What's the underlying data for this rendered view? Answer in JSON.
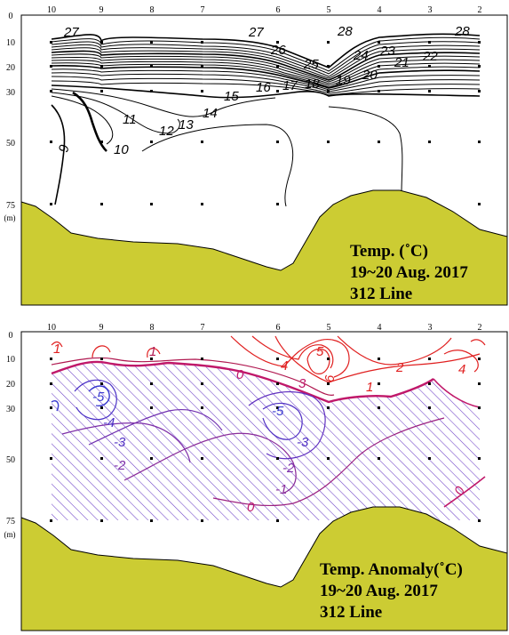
{
  "chart_data": [
    {
      "type": "contour",
      "title_lines": [
        "Temp. (˚C)",
        "19~20 Aug. 2017",
        "312 Line"
      ],
      "x_tick_labels": [
        "10",
        "9",
        "8",
        "7",
        "6",
        "5",
        "4",
        "3",
        "2"
      ],
      "y_tick_labels": [
        "0",
        "10",
        "20",
        "30",
        "50",
        "75"
      ],
      "y_unit": "(m)",
      "contour_labels": [
        "27",
        "26",
        "25",
        "28",
        "24",
        "23",
        "22",
        "21",
        "20",
        "19",
        "18",
        "17",
        "16",
        "15",
        "14",
        "13",
        "12",
        "11",
        "10",
        "9"
      ],
      "colors": {
        "lines": "#000000",
        "terrain": "#cccc33"
      }
    },
    {
      "type": "contour",
      "title_lines": [
        "Temp. Anomaly(˚C)",
        "19~20 Aug. 2017",
        "312 Line"
      ],
      "x_tick_labels": [
        "10",
        "9",
        "8",
        "7",
        "6",
        "5",
        "4",
        "3",
        "2"
      ],
      "y_tick_labels": [
        "0",
        "10",
        "20",
        "30",
        "50",
        "75"
      ],
      "y_unit": "(m)",
      "contour_labels": [
        "1",
        "1",
        "-5",
        "-4",
        "-3",
        "-2",
        "0",
        "4",
        "5",
        "6",
        "3",
        "2",
        "1",
        "4",
        "-5",
        "-3",
        "-2",
        "-1",
        "0",
        "0"
      ],
      "colors": {
        "positive": "#e02020",
        "zero": "#c0186a",
        "negative": "#4030c0",
        "hatch_negative": "#6a40c0",
        "terrain": "#cccc33"
      }
    }
  ]
}
